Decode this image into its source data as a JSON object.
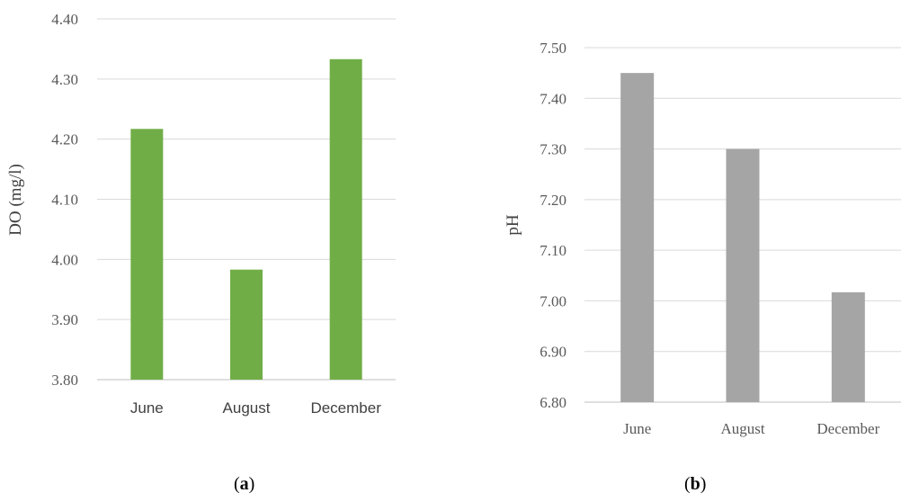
{
  "chart_data": [
    {
      "type": "bar",
      "panel_label": "a",
      "categories": [
        "June",
        "August",
        "December"
      ],
      "values": [
        4.217,
        3.983,
        4.333
      ],
      "ylabel": "DO (mg/l)",
      "yticks": [
        "3.80",
        "3.90",
        "4.00",
        "4.10",
        "4.20",
        "4.30",
        "4.40"
      ],
      "ylim": [
        3.8,
        4.4
      ],
      "grid": true,
      "color": "#70ad47"
    },
    {
      "type": "bar",
      "panel_label": "b",
      "categories": [
        "June",
        "August",
        "December"
      ],
      "values": [
        7.45,
        7.3,
        7.017
      ],
      "ylabel": "pH",
      "yticks": [
        "6.80",
        "6.90",
        "7.00",
        "7.10",
        "7.20",
        "7.30",
        "7.40",
        "7.50"
      ],
      "ylim": [
        6.8,
        7.5
      ],
      "grid": true,
      "color": "#a5a5a5"
    }
  ]
}
